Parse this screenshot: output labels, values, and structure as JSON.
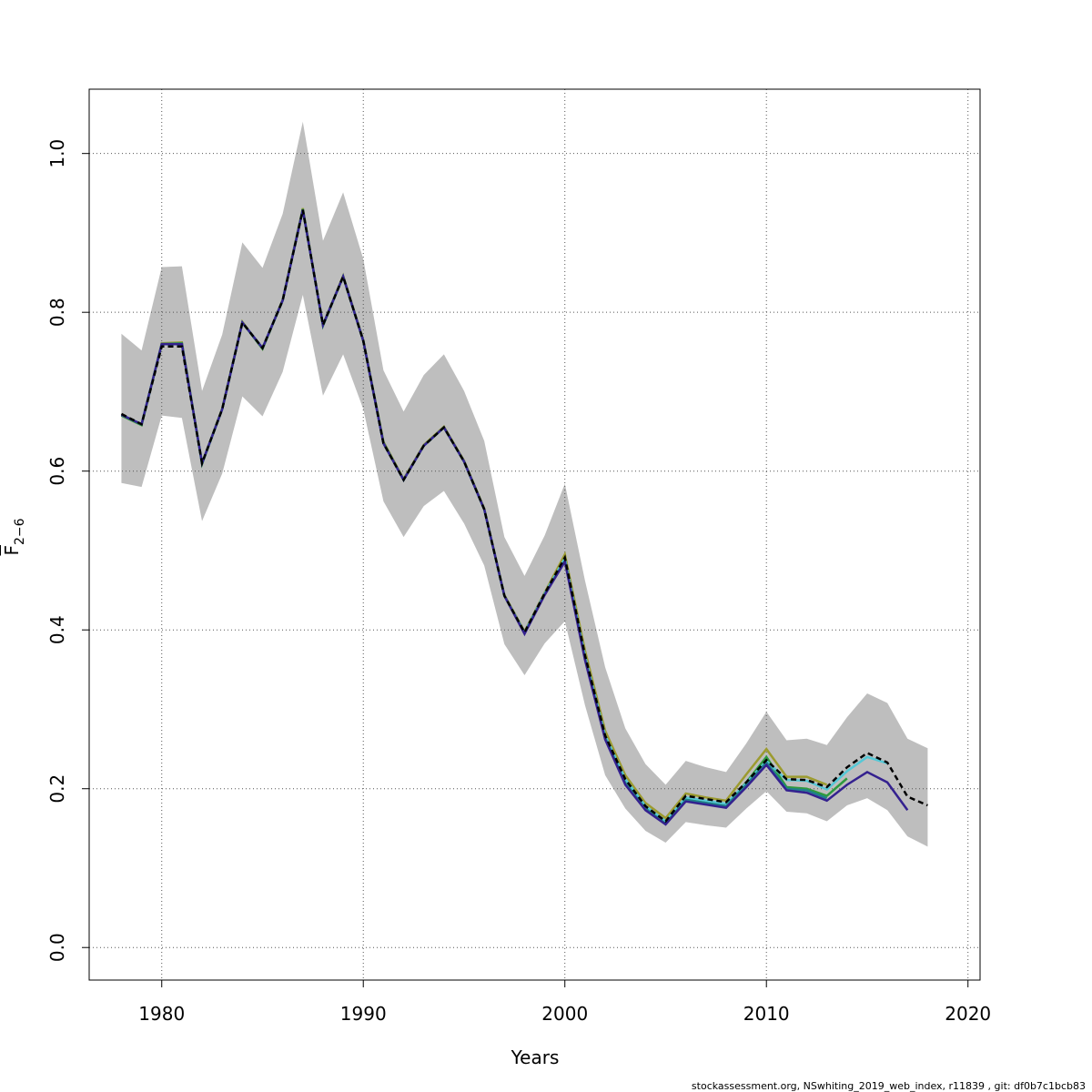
{
  "chart_data": {
    "type": "line",
    "xlabel": "Years",
    "ylabel": "F",
    "ylabel_subscript": "2−6",
    "footer": "stockassessment.org, NSwhiting_2019_web_index, r11839 , git: df0b7c1bcb83",
    "xlim": [
      1976.4,
      2020.6
    ],
    "ylim": [
      -0.041,
      1.081
    ],
    "xticks": [
      1980,
      1990,
      2000,
      2010,
      2020
    ],
    "yticks": [
      {
        "value": 0,
        "label": "0.0"
      },
      0.2,
      0.4,
      0.6,
      0.8,
      {
        "value": 1,
        "label": "1.0"
      }
    ],
    "grid": true,
    "band_color": "#bebebe",
    "x": [
      1978,
      1979,
      1980,
      1981,
      1982,
      1983,
      1984,
      1985,
      1986,
      1987,
      1988,
      1989,
      1990,
      1991,
      1992,
      1993,
      1994,
      1995,
      1996,
      1997,
      1998,
      1999,
      2000,
      2001,
      2002,
      2003,
      2004,
      2005,
      2006,
      2007,
      2008,
      2009,
      2010,
      2011,
      2012,
      2013,
      2014,
      2015,
      2016,
      2017,
      2018
    ],
    "band_upper": [
      0.773,
      0.752,
      0.857,
      0.858,
      0.701,
      0.772,
      0.888,
      0.856,
      0.924,
      1.04,
      0.89,
      0.951,
      0.867,
      0.727,
      0.675,
      0.721,
      0.747,
      0.701,
      0.638,
      0.517,
      0.468,
      0.519,
      0.584,
      0.462,
      0.353,
      0.276,
      0.231,
      0.205,
      0.235,
      0.227,
      0.221,
      0.257,
      0.297,
      0.261,
      0.263,
      0.255,
      0.29,
      0.32,
      0.308,
      0.263,
      0.251
    ],
    "band_lower": [
      0.585,
      0.58,
      0.67,
      0.667,
      0.537,
      0.597,
      0.694,
      0.669,
      0.725,
      0.822,
      0.695,
      0.747,
      0.678,
      0.562,
      0.517,
      0.556,
      0.575,
      0.534,
      0.481,
      0.382,
      0.343,
      0.383,
      0.411,
      0.305,
      0.217,
      0.175,
      0.147,
      0.132,
      0.158,
      0.154,
      0.151,
      0.175,
      0.197,
      0.171,
      0.169,
      0.159,
      0.179,
      0.188,
      0.173,
      0.14,
      0.127
    ],
    "series": [
      {
        "color": "#9c9b2f",
        "dash": false,
        "values": [
          0.67,
          0.658,
          0.761,
          0.762,
          0.61,
          0.679,
          0.788,
          0.754,
          0.816,
          0.931,
          0.784,
          0.846,
          0.765,
          0.637,
          0.59,
          0.633,
          0.656,
          0.613,
          0.553,
          0.444,
          0.398,
          0.447,
          0.495,
          0.374,
          0.273,
          0.217,
          0.182,
          0.163,
          0.194,
          0.189,
          0.185,
          0.218,
          0.25,
          0.215,
          0.215,
          0.205,
          null,
          null,
          null,
          null,
          null
        ]
      },
      {
        "color": "#2e9a3e",
        "dash": false,
        "values": [
          0.67,
          0.658,
          0.76,
          0.761,
          0.609,
          0.678,
          0.787,
          0.754,
          0.815,
          0.93,
          0.783,
          0.845,
          0.764,
          0.636,
          0.589,
          0.632,
          0.655,
          0.612,
          0.552,
          0.443,
          0.396,
          0.445,
          0.489,
          0.366,
          0.266,
          0.21,
          0.176,
          0.158,
          0.187,
          0.183,
          0.179,
          0.208,
          0.24,
          0.202,
          0.2,
          0.191,
          0.213,
          null,
          null,
          null,
          null
        ]
      },
      {
        "color": "#56c8d6",
        "dash": false,
        "values": [
          0.671,
          0.659,
          0.76,
          0.76,
          0.61,
          0.678,
          0.787,
          0.755,
          0.815,
          0.929,
          0.784,
          0.845,
          0.764,
          0.635,
          0.589,
          0.632,
          0.655,
          0.612,
          0.552,
          0.443,
          0.397,
          0.446,
          0.49,
          0.367,
          0.267,
          0.212,
          0.178,
          0.159,
          0.189,
          0.185,
          0.181,
          0.207,
          0.235,
          0.211,
          0.21,
          0.199,
          0.222,
          0.24,
          0.232,
          null,
          null
        ]
      },
      {
        "color": "#1f7f8c",
        "dash": false,
        "values": [
          0.671,
          0.659,
          0.76,
          0.76,
          0.61,
          0.678,
          0.787,
          0.755,
          0.815,
          0.929,
          0.784,
          0.845,
          0.764,
          0.635,
          0.589,
          0.632,
          0.655,
          0.612,
          0.552,
          0.443,
          0.396,
          0.445,
          0.487,
          0.364,
          0.264,
          0.207,
          0.175,
          0.156,
          0.186,
          0.182,
          0.178,
          0.205,
          0.233,
          0.2,
          0.198,
          0.188,
          null,
          null,
          null,
          null,
          null
        ]
      },
      {
        "color": "#34218f",
        "dash": false,
        "values": [
          0.671,
          0.659,
          0.76,
          0.76,
          0.61,
          0.678,
          0.787,
          0.755,
          0.815,
          0.929,
          0.784,
          0.845,
          0.764,
          0.635,
          0.589,
          0.632,
          0.655,
          0.612,
          0.552,
          0.443,
          0.395,
          0.444,
          0.486,
          0.362,
          0.262,
          0.205,
          0.173,
          0.155,
          0.184,
          0.18,
          0.176,
          0.202,
          0.23,
          0.198,
          0.195,
          0.185,
          0.205,
          0.221,
          0.208,
          0.173,
          null
        ]
      },
      {
        "color": "#000000",
        "dash": true,
        "values": [
          0.672,
          0.659,
          0.757,
          0.757,
          0.61,
          0.678,
          0.787,
          0.755,
          0.815,
          0.929,
          0.784,
          0.845,
          0.764,
          0.635,
          0.589,
          0.632,
          0.655,
          0.612,
          0.552,
          0.443,
          0.397,
          0.446,
          0.491,
          0.368,
          0.267,
          0.212,
          0.178,
          0.159,
          0.191,
          0.187,
          0.183,
          0.208,
          0.236,
          0.212,
          0.211,
          0.202,
          0.227,
          0.245,
          0.233,
          0.19,
          0.179
        ]
      }
    ]
  }
}
